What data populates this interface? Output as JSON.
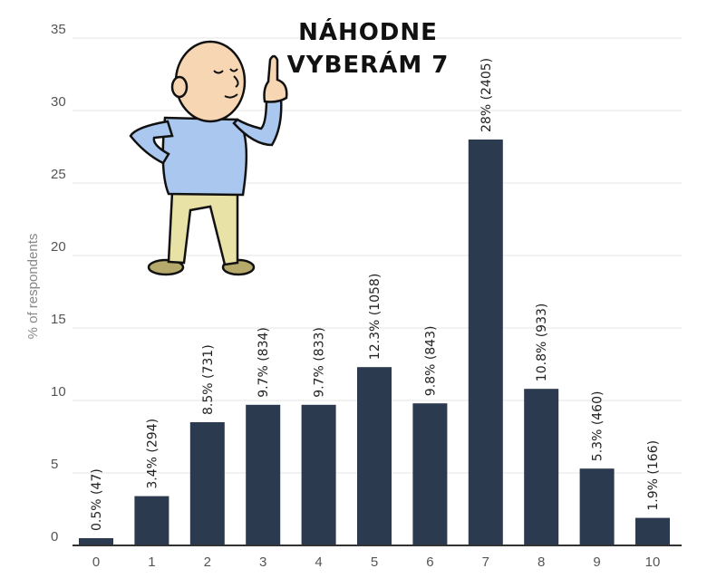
{
  "caption": {
    "line1": "NÁHODNE",
    "line2": "VYBERÁM 7"
  },
  "chart_data": {
    "type": "bar",
    "ylabel": "% of respondents",
    "xlabel": "",
    "ylim": [
      0,
      35
    ],
    "yticks": [
      0,
      5,
      10,
      15,
      20,
      25,
      30,
      35
    ],
    "grid": true,
    "categories": [
      "0",
      "1",
      "2",
      "3",
      "4",
      "5",
      "6",
      "7",
      "8",
      "9",
      "10"
    ],
    "values": [
      0.5,
      3.4,
      8.5,
      9.7,
      9.7,
      12.3,
      9.8,
      28,
      10.8,
      5.3,
      1.9
    ],
    "data_labels": [
      "0.5% (47)",
      "3.4% (294)",
      "8.5% (731)",
      "9.7% (834)",
      "9.7% (833)",
      "12.3% (1058)",
      "9.8% (843)",
      "28% (2405)",
      "10.8% (933)",
      "5.3% (460)",
      "1.9% (166)"
    ],
    "bar_color": "#2b3a4f"
  },
  "illustration": {
    "name": "cartoon man pointing finger up",
    "colors": {
      "skin": "#f7d6b4",
      "shirt": "#a9c7ef",
      "pants": "#e8e2a6",
      "shoes": "#b5a96b"
    }
  }
}
